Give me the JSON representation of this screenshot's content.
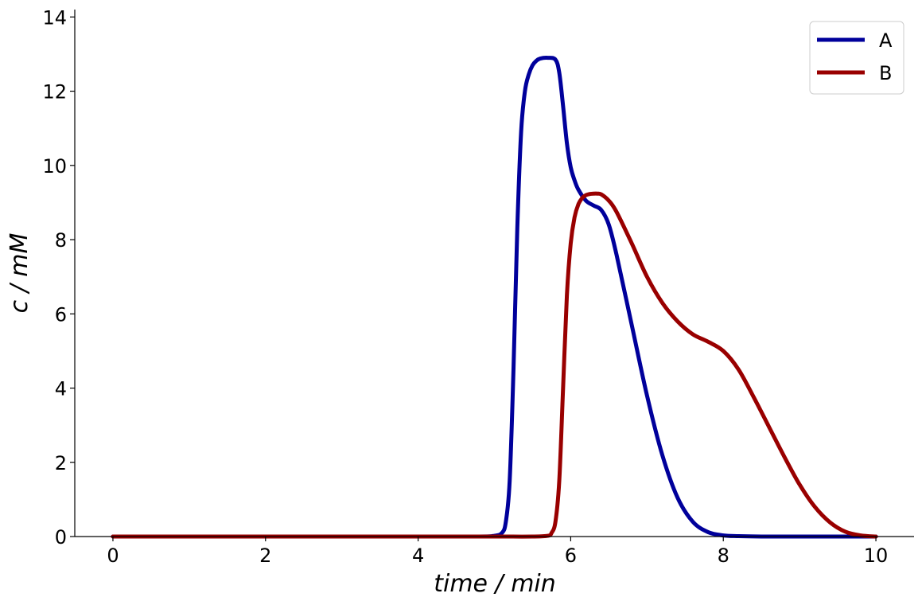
{
  "chart_data": {
    "type": "line",
    "xlabel": "time / min",
    "ylabel": "c / mM",
    "xlim": [
      -0.5,
      10.5
    ],
    "ylim": [
      0,
      14.2
    ],
    "xticks": [
      0,
      2,
      4,
      6,
      8,
      10
    ],
    "yticks": [
      0,
      2,
      4,
      6,
      8,
      10,
      12,
      14
    ],
    "xtick_labels": [
      "0",
      "2",
      "4",
      "6",
      "8",
      "10"
    ],
    "ytick_labels": [
      "0",
      "2",
      "4",
      "6",
      "8",
      "10",
      "12",
      "14"
    ],
    "grid": false,
    "legend_position": "top-right",
    "series": [
      {
        "name": "A",
        "color": "#00009b",
        "x": [
          0,
          1,
          2,
          3,
          4,
          4.8,
          5.0,
          5.1,
          5.15,
          5.2,
          5.25,
          5.3,
          5.35,
          5.4,
          5.45,
          5.5,
          5.55,
          5.6,
          5.7,
          5.8,
          5.85,
          5.9,
          5.95,
          6.0,
          6.05,
          6.1,
          6.2,
          6.3,
          6.4,
          6.5,
          6.6,
          6.8,
          7.0,
          7.2,
          7.4,
          7.6,
          7.8,
          8.0,
          8.2,
          8.5,
          9.0,
          9.5,
          10.0
        ],
        "y": [
          0,
          0,
          0,
          0,
          0,
          0,
          0.02,
          0.1,
          0.4,
          1.5,
          4.5,
          8.3,
          10.9,
          12.0,
          12.45,
          12.7,
          12.82,
          12.88,
          12.9,
          12.85,
          12.5,
          11.6,
          10.6,
          9.95,
          9.6,
          9.35,
          9.05,
          8.92,
          8.8,
          8.4,
          7.6,
          5.7,
          3.8,
          2.2,
          1.05,
          0.4,
          0.12,
          0.03,
          0.01,
          0,
          0,
          0,
          0
        ]
      },
      {
        "name": "B",
        "color": "#990000",
        "x": [
          0,
          1,
          2,
          3,
          4,
          5,
          5.5,
          5.7,
          5.75,
          5.8,
          5.85,
          5.9,
          5.95,
          6.0,
          6.05,
          6.1,
          6.15,
          6.2,
          6.25,
          6.3,
          6.35,
          6.4,
          6.5,
          6.6,
          6.8,
          7.0,
          7.2,
          7.4,
          7.6,
          7.8,
          8.0,
          8.2,
          8.4,
          8.6,
          8.8,
          9.0,
          9.2,
          9.4,
          9.6,
          9.8,
          10.0
        ],
        "y": [
          0,
          0,
          0,
          0,
          0,
          0,
          0,
          0.02,
          0.1,
          0.4,
          1.5,
          4.0,
          6.5,
          7.9,
          8.6,
          8.95,
          9.12,
          9.2,
          9.23,
          9.24,
          9.24,
          9.22,
          9.05,
          8.75,
          7.9,
          7.0,
          6.3,
          5.8,
          5.45,
          5.25,
          5.0,
          4.5,
          3.75,
          2.95,
          2.15,
          1.4,
          0.8,
          0.38,
          0.13,
          0.03,
          0
        ]
      }
    ]
  }
}
